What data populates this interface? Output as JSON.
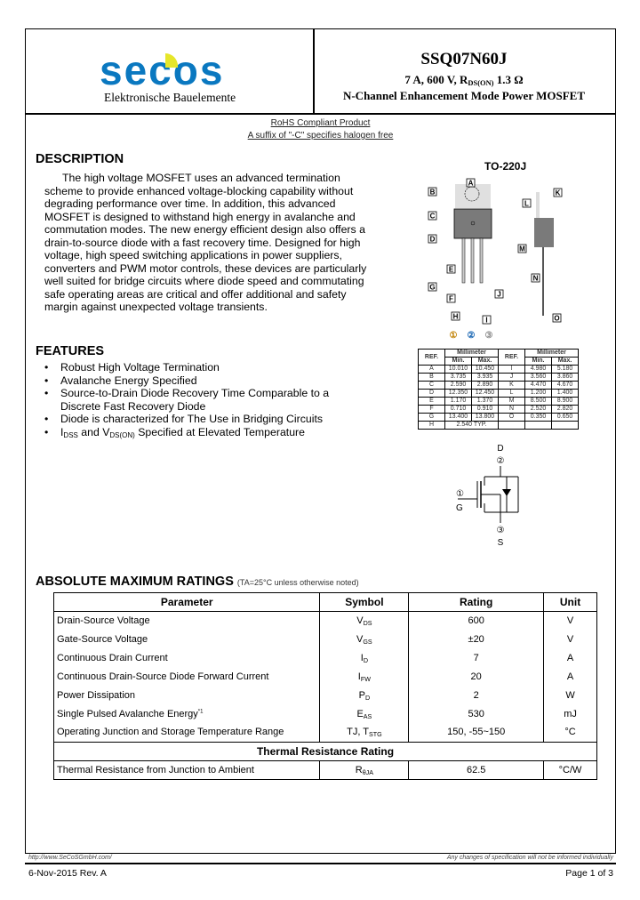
{
  "header": {
    "logo_text": "secos",
    "logo_subtitle": "Elektronische Bauelemente",
    "part_number": "SSQ07N60J",
    "spec_prefix": "7 A, 600 V, R",
    "spec_sub": "DS(ON)",
    "spec_suffix": " 1.3 Ω",
    "description": "N-Channel Enhancement Mode Power MOSFET",
    "brand_color": "#0a78c0"
  },
  "notes": {
    "rohs": "RoHS Compliant Product",
    "halogen": "A suffix of \"-C\" specifies halogen free"
  },
  "description": {
    "heading": "DESCRIPTION",
    "text": "The high voltage MOSFET uses an advanced termination scheme to provide enhanced voltage-blocking capability without degrading performance over time. In addition, this advanced MOSFET is designed to withstand high energy in avalanche and commutation modes. The new energy efficient design also offers a drain-to-source diode with a fast recovery time. Designed for high voltage, high speed switching applications in power suppliers, converters and PWM motor controls, these devices are particularly well suited for bridge circuits where diode speed and commutating safe operating areas are critical and offer additional and safety margin against unexpected voltage transients."
  },
  "features": {
    "heading": "FEATURES",
    "items": [
      "Robust High Voltage Termination",
      "Avalanche Energy Specified",
      "Source-to-Drain Diode Recovery Time Comparable to a Discrete Fast Recovery Diode",
      "Diode is characterized for The Use in Bridging Circuits"
    ],
    "last_parts": [
      "I",
      "DSS",
      "and V",
      "DS(ON)",
      " Specified at Elevated Temperature"
    ]
  },
  "package": {
    "title": "TO-220J",
    "labels": [
      "A",
      "B",
      "C",
      "D",
      "E",
      "F",
      "G",
      "H",
      "I",
      "J",
      "K",
      "L",
      "M",
      "N",
      "O"
    ],
    "pins": [
      "①",
      "②",
      "③"
    ],
    "table_headers": {
      "ref": "REF.",
      "mm": "Millimeter",
      "min": "Min.",
      "max": "Max."
    },
    "rows": [
      [
        "A",
        "10.010",
        "10.450",
        "I",
        "4.980",
        "5.180"
      ],
      [
        "B",
        "3.735",
        "3.935",
        "J",
        "3.560",
        "3.860"
      ],
      [
        "C",
        "2.590",
        "2.890",
        "K",
        "4.470",
        "4.670"
      ],
      [
        "D",
        "12.350",
        "12.450",
        "L",
        "1.200",
        "1.400"
      ],
      [
        "E",
        "1.170",
        "1.370",
        "M",
        "8.500",
        "8.900"
      ],
      [
        "F",
        "0.710",
        "0.910",
        "N",
        "2.520",
        "2.820"
      ],
      [
        "G",
        "13.400",
        "13.800",
        "O",
        "0.350",
        "0.650"
      ]
    ],
    "h_row": [
      "H",
      "2.540 TYP."
    ]
  },
  "symbol": {
    "drain": "D",
    "gate": "G",
    "source": "S",
    "drain_pin": "②",
    "gate_pin": "①",
    "source_pin": "③"
  },
  "ratings": {
    "heading": "ABSOLUTE MAXIMUM RATINGS",
    "condition": "(TA=25°C unless otherwise noted)",
    "columns": [
      "Parameter",
      "Symbol",
      "Rating",
      "Unit"
    ],
    "rows": [
      {
        "param": "Drain-Source Voltage",
        "sym": "V",
        "sub": "DS",
        "rating": "600",
        "unit": "V"
      },
      {
        "param": "Gate-Source Voltage",
        "sym": "V",
        "sub": "GS",
        "rating": "±20",
        "unit": "V"
      },
      {
        "param": "Continuous Drain Current",
        "sym": "I",
        "sub": "D",
        "rating": "7",
        "unit": "A"
      },
      {
        "param": "Continuous Drain-Source Diode Forward Current",
        "sym": "I",
        "sub": "FW",
        "rating": "20",
        "unit": "A"
      },
      {
        "param": "Power Dissipation",
        "sym": "P",
        "sub": "D",
        "rating": "2",
        "unit": "W"
      },
      {
        "param": "Single Pulsed Avalanche Energy",
        "note": "*1",
        "sym": "E",
        "sub": "AS",
        "rating": "530",
        "unit": "mJ"
      },
      {
        "param": "Operating Junction and Storage Temperature Range",
        "sym": "TJ, T",
        "sub": "STG",
        "rating": "150, -55~150",
        "unit": "°C"
      }
    ],
    "thermal_heading": "Thermal Resistance Rating",
    "thermal": {
      "param": "Thermal Resistance from Junction to Ambient",
      "sym": "R",
      "sub": "θJA",
      "rating": "62.5",
      "unit": "°C/W"
    }
  },
  "footer": {
    "url": "http://www.SeCoSGmbH.com/",
    "disclaimer": "Any changes of specification will not be informed individually",
    "date_rev": "6-Nov-2015 Rev. A",
    "page": "Page 1 of 3"
  }
}
